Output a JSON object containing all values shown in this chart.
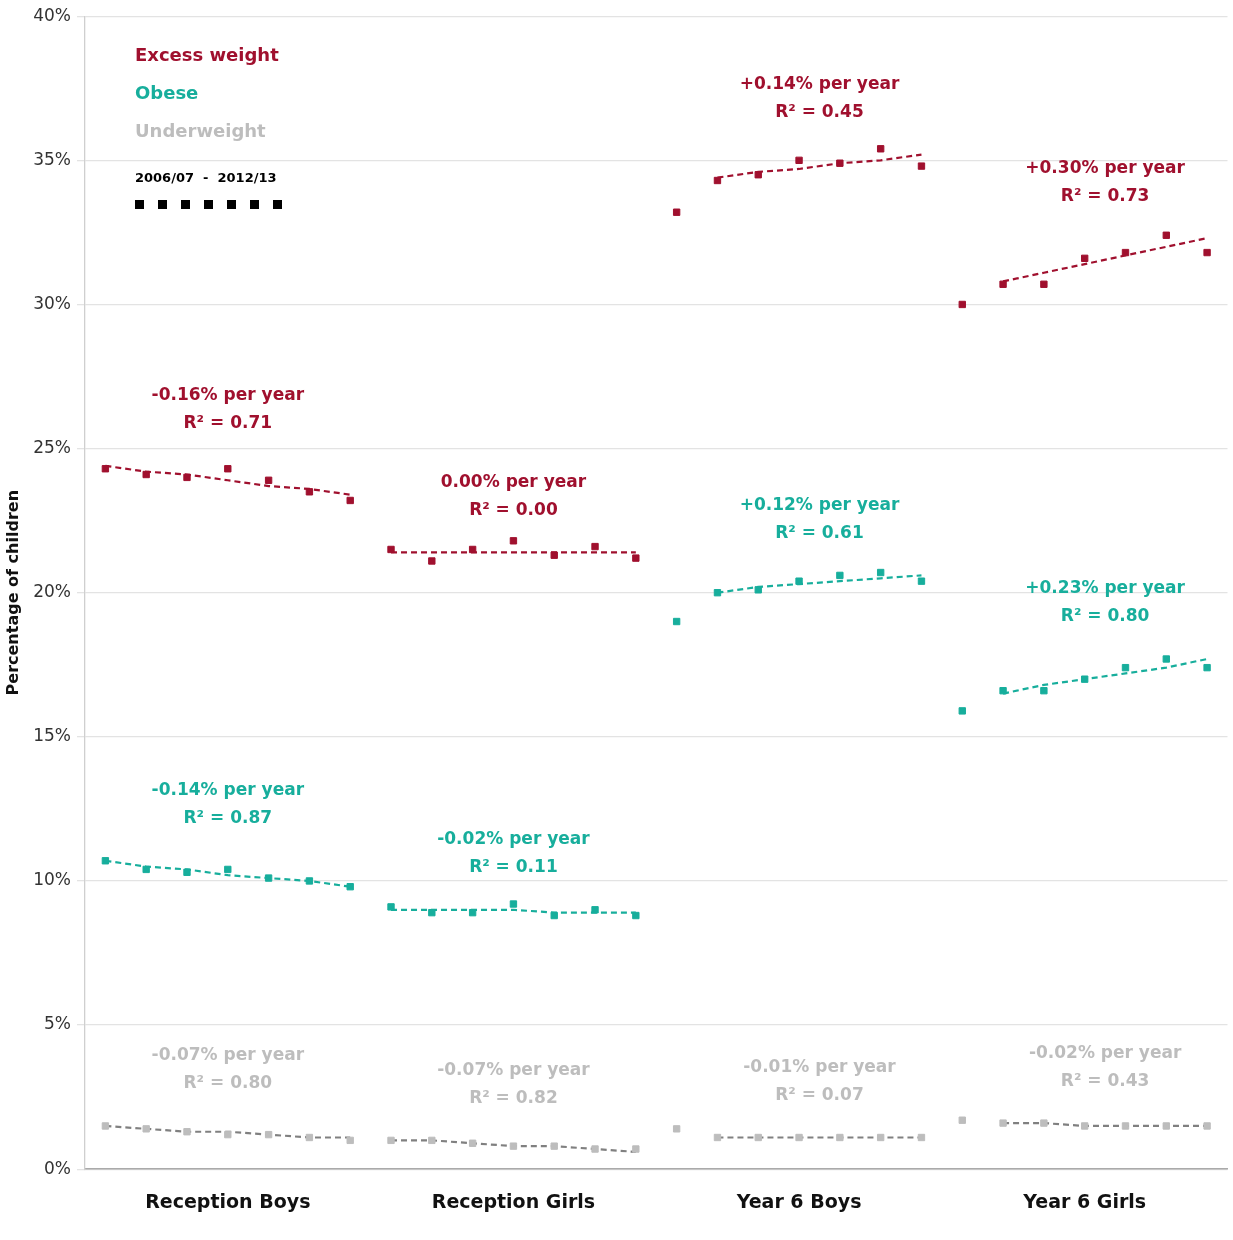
{
  "chart_data": {
    "type": "scatter",
    "ylabel": "Percentage of children",
    "categories": [
      null,
      null,
      null,
      "Reception Boys",
      null,
      null,
      null,
      null,
      null,
      null,
      "Reception Girls",
      null,
      null,
      null,
      null,
      null,
      null,
      "Year 6 Boys",
      null,
      null,
      null,
      null,
      null,
      null,
      "Year 6 Girls",
      null,
      null,
      null
    ],
    "ylim": [
      0,
      40
    ],
    "yticks": [
      {
        "value": 0,
        "label": "0%"
      },
      {
        "value": 5,
        "label": "5%"
      },
      {
        "value": 10,
        "label": "10%"
      },
      {
        "value": 15,
        "label": "15%"
      },
      {
        "value": 20,
        "label": "20%"
      },
      {
        "value": 25,
        "label": "25%"
      },
      {
        "value": 30,
        "label": "30%"
      },
      {
        "value": 35,
        "label": "35%"
      },
      {
        "value": 40,
        "label": "40%"
      }
    ],
    "grid": "y",
    "marker": "square",
    "legend": "top left",
    "legend_title": "2006/07  -  2012/13",
    "series": [
      {
        "name": "Excess weight",
        "color": "#a0102e",
        "values": [
          24.3,
          24.1,
          24.0,
          24.3,
          23.9,
          23.5,
          23.2,
          21.5,
          21.1,
          21.5,
          21.8,
          21.3,
          21.6,
          21.2,
          33.2,
          34.3,
          34.5,
          35.0,
          34.9,
          35.4,
          34.8,
          30.0,
          30.7,
          30.7,
          31.6,
          31.8,
          32.4,
          31.8
        ]
      },
      {
        "name": "Obese",
        "color": "#17ae9c",
        "values": [
          10.7,
          10.4,
          10.3,
          10.4,
          10.1,
          10.0,
          9.8,
          9.1,
          8.9,
          8.9,
          9.2,
          8.8,
          9.0,
          8.8,
          19.0,
          20.0,
          20.1,
          20.4,
          20.6,
          20.7,
          20.4,
          15.9,
          16.6,
          16.6,
          17.0,
          17.4,
          17.7,
          17.4
        ]
      },
      {
        "name": "Underweight",
        "color": "#bdbdbd",
        "values": [
          1.5,
          1.4,
          1.3,
          1.2,
          1.2,
          1.1,
          1.0,
          1.0,
          1.0,
          0.9,
          0.8,
          0.8,
          0.7,
          0.7,
          1.4,
          1.1,
          1.1,
          1.1,
          1.1,
          1.1,
          1.1,
          1.7,
          1.6,
          1.6,
          1.5,
          1.5,
          1.5,
          1.5
        ]
      },
      {
        "type": "line",
        "line_style": "dashed",
        "marker": "none",
        "color": "#a0102e",
        "values": [
          24.4,
          24.2,
          24.1,
          23.9,
          23.7,
          23.6,
          23.4,
          null,
          null,
          null,
          null,
          null,
          null,
          null,
          null,
          null,
          null,
          null,
          null,
          null,
          null,
          null,
          null,
          null,
          null,
          null,
          null,
          null
        ]
      },
      {
        "type": "line",
        "line_style": "dashed",
        "marker": "none",
        "color": "#17ae9c",
        "values": [
          10.7,
          10.5,
          10.4,
          10.2,
          10.1,
          10.0,
          9.8,
          null,
          null,
          null,
          null,
          null,
          null,
          null,
          null,
          null,
          null,
          null,
          null,
          null,
          null,
          null,
          null,
          null,
          null,
          null,
          null,
          null
        ]
      },
      {
        "type": "line",
        "line_style": "dashed",
        "marker": "none",
        "color": "#808080",
        "values": [
          1.5,
          1.4,
          1.3,
          1.3,
          1.2,
          1.1,
          1.1,
          null,
          null,
          null,
          null,
          null,
          null,
          null,
          null,
          null,
          null,
          null,
          null,
          null,
          null,
          null,
          null,
          null,
          null,
          null,
          null,
          null
        ]
      },
      {
        "type": "line",
        "line_style": "dashed",
        "marker": "none",
        "color": "#a0102e",
        "values": [
          null,
          null,
          null,
          null,
          null,
          null,
          null,
          21.4,
          21.4,
          21.4,
          21.4,
          21.4,
          21.4,
          21.4,
          null,
          null,
          null,
          null,
          null,
          null,
          null,
          null,
          null,
          null,
          null,
          null,
          null,
          null
        ]
      },
      {
        "type": "line",
        "line_style": "dashed",
        "marker": "none",
        "color": "#17ae9c",
        "values": [
          null,
          null,
          null,
          null,
          null,
          null,
          null,
          9.0,
          9.0,
          9.0,
          9.0,
          8.9,
          8.9,
          8.9,
          null,
          null,
          null,
          null,
          null,
          null,
          null,
          null,
          null,
          null,
          null,
          null,
          null,
          null
        ]
      },
      {
        "type": "line",
        "line_style": "dashed",
        "marker": "none",
        "color": "#808080",
        "values": [
          null,
          null,
          null,
          null,
          null,
          null,
          null,
          1.0,
          1.0,
          0.9,
          0.8,
          0.8,
          0.7,
          0.6,
          null,
          null,
          null,
          null,
          null,
          null,
          null,
          null,
          null,
          null,
          null,
          null,
          null,
          null
        ]
      },
      {
        "type": "line",
        "line_style": "dashed",
        "marker": "none",
        "color": "#a0102e",
        "values": [
          null,
          null,
          null,
          null,
          null,
          null,
          null,
          null,
          null,
          null,
          null,
          null,
          null,
          null,
          null,
          34.4,
          34.6,
          34.7,
          34.9,
          35.0,
          35.2,
          null,
          null,
          null,
          null,
          null,
          null,
          null
        ]
      },
      {
        "type": "line",
        "line_style": "dashed",
        "marker": "none",
        "color": "#17ae9c",
        "values": [
          null,
          null,
          null,
          null,
          null,
          null,
          null,
          null,
          null,
          null,
          null,
          null,
          null,
          null,
          null,
          20.0,
          20.2,
          20.3,
          20.4,
          20.5,
          20.6,
          null,
          null,
          null,
          null,
          null,
          null,
          null
        ]
      },
      {
        "type": "line",
        "line_style": "dashed",
        "marker": "none",
        "color": "#808080",
        "values": [
          null,
          null,
          null,
          null,
          null,
          null,
          null,
          null,
          null,
          null,
          null,
          null,
          null,
          null,
          null,
          1.1,
          1.1,
          1.1,
          1.1,
          1.1,
          1.1,
          null,
          null,
          null,
          null,
          null,
          null,
          null
        ]
      },
      {
        "type": "line",
        "line_style": "dashed",
        "marker": "none",
        "color": "#a0102e",
        "values": [
          null,
          null,
          null,
          null,
          null,
          null,
          null,
          null,
          null,
          null,
          null,
          null,
          null,
          null,
          null,
          null,
          null,
          null,
          null,
          null,
          null,
          null,
          30.8,
          31.1,
          31.4,
          31.7,
          32.0,
          32.3
        ]
      },
      {
        "type": "line",
        "line_style": "dashed",
        "marker": "none",
        "color": "#17ae9c",
        "values": [
          null,
          null,
          null,
          null,
          null,
          null,
          null,
          null,
          null,
          null,
          null,
          null,
          null,
          null,
          null,
          null,
          null,
          null,
          null,
          null,
          null,
          null,
          16.5,
          16.8,
          17.0,
          17.2,
          17.4,
          17.7
        ]
      },
      {
        "type": "line",
        "line_style": "dashed",
        "marker": "none",
        "color": "#808080",
        "values": [
          null,
          null,
          null,
          null,
          null,
          null,
          null,
          null,
          null,
          null,
          null,
          null,
          null,
          null,
          null,
          null,
          null,
          null,
          null,
          null,
          null,
          null,
          1.6,
          1.6,
          1.5,
          1.5,
          1.5,
          1.5
        ]
      }
    ],
    "annotations": [
      "-0.16% per year\nR² = 0.71",
      "-0.14% per year\nR² = 0.87",
      "-0.07% per year\nR² = 0.80",
      "0.00% per year\nR² = 0.00",
      "-0.02% per year\nR² = 0.11",
      "-0.07% per year\nR² = 0.82",
      "+0.14% per year\nR² = 0.45",
      "+0.12% per year\nR² = 0.61",
      "-0.01% per year\nR² = 0.07",
      "+0.30% per year\nR² = 0.73",
      "+0.23% per year\nR² = 0.80",
      "-0.02% per year\nR² = 0.43"
    ]
  }
}
